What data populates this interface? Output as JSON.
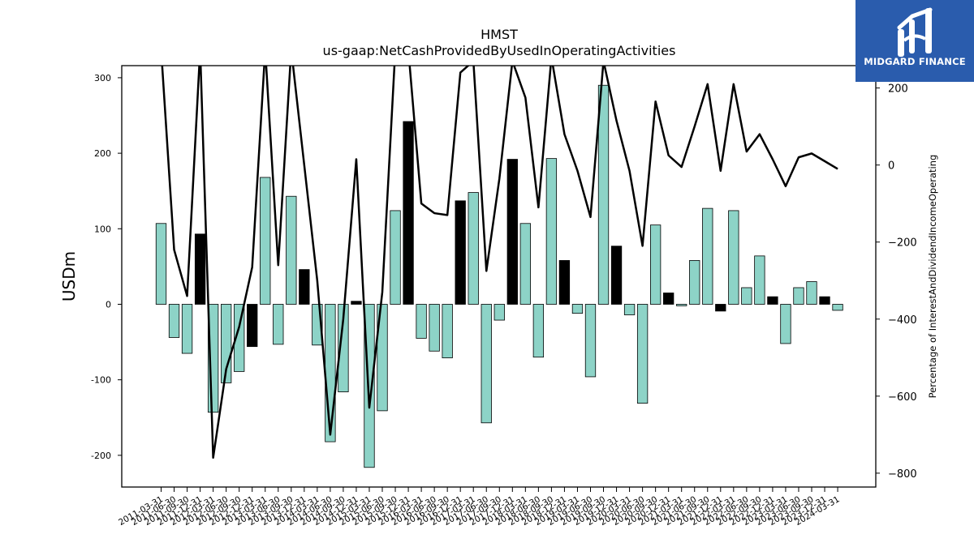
{
  "brand": {
    "name": "MIDGARD FINANCE",
    "bg_color": "#2a5cad",
    "icon": "midgard-logo-icon"
  },
  "chart_data": {
    "type": "bar",
    "title": "HMST",
    "subtitle": "us-gaap:NetCashProvidedByUsedInOperatingActivities",
    "ylabel": "USDm",
    "y2label": "Percentage of InterestAndDividendIncomeOperating",
    "ylim": [
      -242,
      316
    ],
    "y2lim": [
      -836,
      258
    ],
    "yticks": [
      -200,
      -100,
      0,
      100,
      200,
      300
    ],
    "y2ticks": [
      -800,
      -600,
      -400,
      -200,
      0,
      200
    ],
    "bar_colors": {
      "default": "#8dd3c7",
      "highlight": "#000000"
    },
    "categories": [
      "2011-03-31",
      "2011-06-30",
      "2011-09-30",
      "2011-12-31",
      "2012-03-31",
      "2012-06-30",
      "2012-09-30",
      "2012-12-31",
      "2013-03-31",
      "2013-06-30",
      "2013-09-30",
      "2013-12-31",
      "2014-03-31",
      "2014-06-30",
      "2014-09-30",
      "2014-12-31",
      "2015-03-31",
      "2015-06-30",
      "2015-09-30",
      "2015-12-31",
      "2016-03-31",
      "2016-06-30",
      "2016-09-30",
      "2016-12-31",
      "2017-03-31",
      "2017-06-30",
      "2017-09-30",
      "2017-12-31",
      "2018-03-31",
      "2018-06-30",
      "2018-09-30",
      "2018-12-31",
      "2019-03-31",
      "2019-06-30",
      "2019-09-30",
      "2019-12-31",
      "2020-03-31",
      "2020-06-30",
      "2020-09-30",
      "2020-12-31",
      "2021-03-31",
      "2021-06-30",
      "2021-09-30",
      "2021-12-31",
      "2022-03-31",
      "2022-06-30",
      "2022-09-30",
      "2022-12-31",
      "2023-03-31",
      "2023-06-30",
      "2023-09-30",
      "2023-12-31",
      "2024-03-31"
    ],
    "xtick_labels": [
      "2011-03-31",
      "2011-06-30",
      "2011-09-30",
      "2011-12-31",
      "2012-03-31",
      "2012-06-30",
      "2012-09-30",
      "2012-12-31",
      "2013-03-31",
      "2013-06-30",
      "2013-09-30",
      "2013-12-31",
      "2014-03-31",
      "2014-06-30",
      "2014-09-30",
      "2014-12-31",
      "2015-03-31",
      "2015-06-30",
      "2015-09-30",
      "2015-12-31",
      "2016-03-31",
      "2016-06-30",
      "2016-09-30",
      "2016-12-31",
      "2017-03-31",
      "2017-06-30",
      "2017-09-30",
      "2017-12-31",
      "2018-03-31",
      "2018-06-30",
      "2018-09-30",
      "2018-12-31",
      "2019-03-31",
      "2019-06-30",
      "2019-09-30",
      "2019-12-31",
      "2020-03-31",
      "2020-06-30",
      "2020-09-30",
      "2020-12-31",
      "2021-03-31",
      "2021-06-30",
      "2021-09-30",
      "2021-12-31",
      "2022-03-31",
      "2022-06-30",
      "2022-09-30",
      "2022-12-31",
      "2023-03-31",
      "2023-06-30",
      "2023-09-30",
      "2023-12-31",
      "2024-03-31"
    ],
    "bars": [
      {
        "v": 107,
        "h": false
      },
      {
        "v": -44,
        "h": false
      },
      {
        "v": -65,
        "h": false
      },
      {
        "v": 93,
        "h": true
      },
      {
        "v": -143,
        "h": false
      },
      {
        "v": -104,
        "h": false
      },
      {
        "v": -89,
        "h": false
      },
      {
        "v": -56,
        "h": true
      },
      {
        "v": 168,
        "h": false
      },
      {
        "v": -53,
        "h": false
      },
      {
        "v": 143,
        "h": false
      },
      {
        "v": 46,
        "h": true
      },
      {
        "v": -54,
        "h": false
      },
      {
        "v": -182,
        "h": false
      },
      {
        "v": -116,
        "h": false
      },
      {
        "v": 4,
        "h": true
      },
      {
        "v": -216,
        "h": false
      },
      {
        "v": -141,
        "h": false
      },
      {
        "v": 124,
        "h": false
      },
      {
        "v": 242,
        "h": true
      },
      {
        "v": -45,
        "h": false
      },
      {
        "v": -62,
        "h": false
      },
      {
        "v": -71,
        "h": false
      },
      {
        "v": 137,
        "h": true
      },
      {
        "v": 148,
        "h": false
      },
      {
        "v": -157,
        "h": false
      },
      {
        "v": -21,
        "h": false
      },
      {
        "v": 192,
        "h": true
      },
      {
        "v": 107,
        "h": false
      },
      {
        "v": -70,
        "h": false
      },
      {
        "v": 193,
        "h": false
      },
      {
        "v": 58,
        "h": true
      },
      {
        "v": -12,
        "h": false
      },
      {
        "v": -96,
        "h": false
      },
      {
        "v": 290,
        "h": false
      },
      {
        "v": 77,
        "h": true
      },
      {
        "v": -14,
        "h": false
      },
      {
        "v": -131,
        "h": false
      },
      {
        "v": 105,
        "h": false
      },
      {
        "v": 15,
        "h": true
      },
      {
        "v": -2,
        "h": false
      },
      {
        "v": 58,
        "h": false
      },
      {
        "v": 127,
        "h": false
      },
      {
        "v": -9,
        "h": true
      },
      {
        "v": 124,
        "h": false
      },
      {
        "v": 22,
        "h": false
      },
      {
        "v": 64,
        "h": false
      },
      {
        "v": 10,
        "h": true
      },
      {
        "v": -52,
        "h": false
      },
      {
        "v": 22,
        "h": false
      },
      {
        "v": 30,
        "h": false
      },
      {
        "v": 10,
        "h": true
      },
      {
        "v": -8,
        "h": false
      }
    ],
    "line": [
      300,
      -220,
      -340,
      300,
      -760,
      -530,
      -420,
      -265,
      300,
      -260,
      300,
      0,
      -300,
      -700,
      -400,
      15,
      -630,
      -330,
      300,
      300,
      -100,
      -125,
      -130,
      240,
      270,
      -275,
      -35,
      270,
      175,
      -110,
      280,
      80,
      -15,
      -135,
      270,
      115,
      -15,
      -210,
      165,
      25,
      -5,
      100,
      210,
      -15,
      210,
      35,
      80,
      15,
      -55,
      20,
      30,
      10,
      -10
    ]
  }
}
